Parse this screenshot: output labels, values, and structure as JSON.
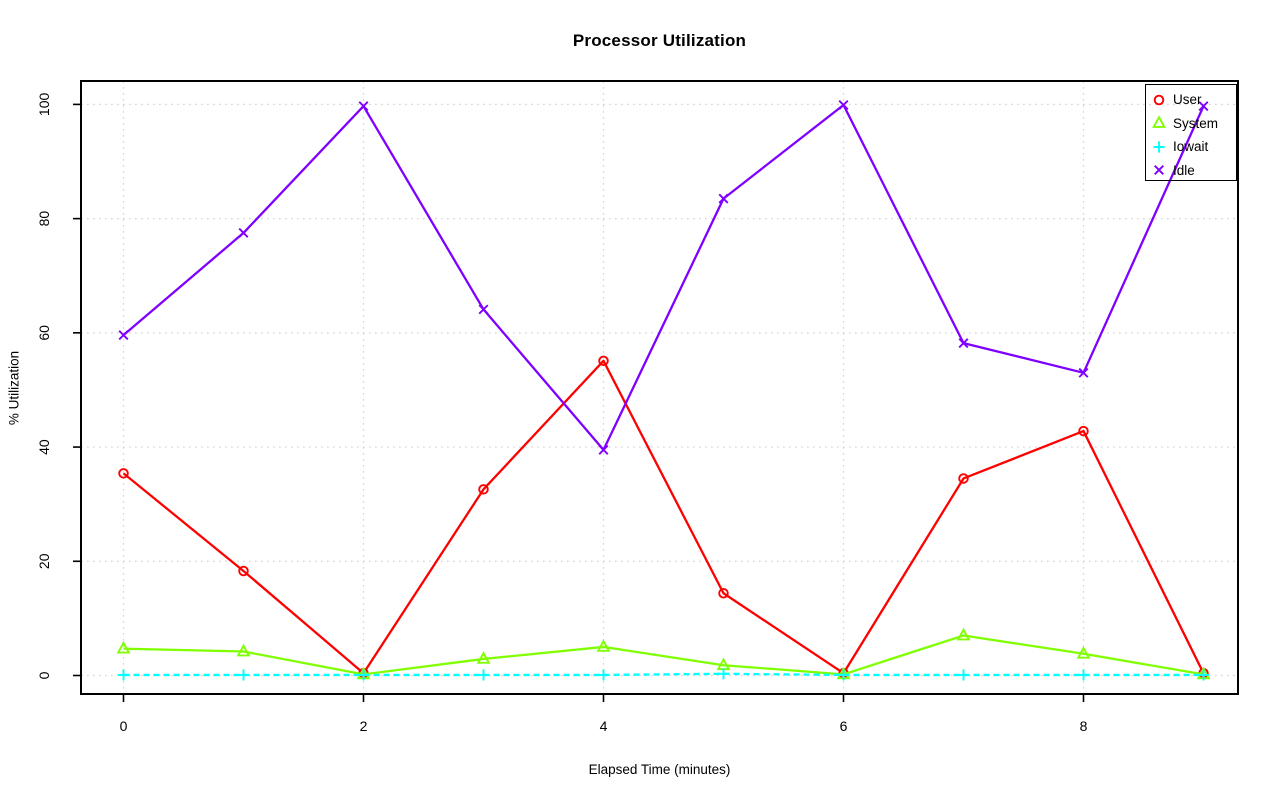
{
  "title": "Processor Utilization",
  "axes": {
    "xlabel": "Elapsed Time (minutes)",
    "ylabel": "% Utilization"
  },
  "colors": {
    "user": "#ff0000",
    "system": "#80ff00",
    "iowait": "#00ffff",
    "idle": "#7f00ff",
    "grid": "#d6d6d6",
    "axis": "#000000"
  },
  "legend": {
    "position": "top-right",
    "entries": [
      "User",
      "System",
      "Iowait",
      "Idle"
    ]
  },
  "chart_data": {
    "type": "line",
    "title": "Processor Utilization",
    "xlabel": "Elapsed Time (minutes)",
    "ylabel": "% Utilization",
    "x": [
      0,
      1,
      2,
      3,
      4,
      5,
      6,
      7,
      8,
      9
    ],
    "xticks": [
      0,
      2,
      4,
      6,
      8
    ],
    "yticks": [
      0,
      20,
      40,
      60,
      80,
      100
    ],
    "xlim": [
      -0.36,
      9.36
    ],
    "ylim": [
      -4,
      104
    ],
    "grid": "dotted-lightgray-at-ticks",
    "legend_position": "top-right",
    "series": [
      {
        "name": "User",
        "color": "#ff0000",
        "marker": "circle",
        "line": "solid",
        "values": [
          35.4,
          18.3,
          0.4,
          32.6,
          55.1,
          14.4,
          0.4,
          34.5,
          42.8,
          0.4
        ]
      },
      {
        "name": "System",
        "color": "#80ff00",
        "marker": "triangle",
        "line": "solid",
        "values": [
          4.7,
          4.2,
          0.2,
          2.9,
          5.0,
          1.8,
          0.2,
          7.0,
          3.8,
          0.2
        ]
      },
      {
        "name": "Iowait",
        "color": "#00ffff",
        "marker": "plus",
        "line": "dashed",
        "values": [
          0.1,
          0.1,
          0.1,
          0.1,
          0.1,
          0.3,
          0.1,
          0.1,
          0.1,
          0.1
        ]
      },
      {
        "name": "Idle",
        "color": "#7f00ff",
        "marker": "x",
        "line": "solid",
        "values": [
          59.6,
          77.5,
          99.7,
          64.1,
          39.5,
          83.5,
          99.9,
          58.2,
          53.0,
          99.7
        ]
      }
    ]
  }
}
